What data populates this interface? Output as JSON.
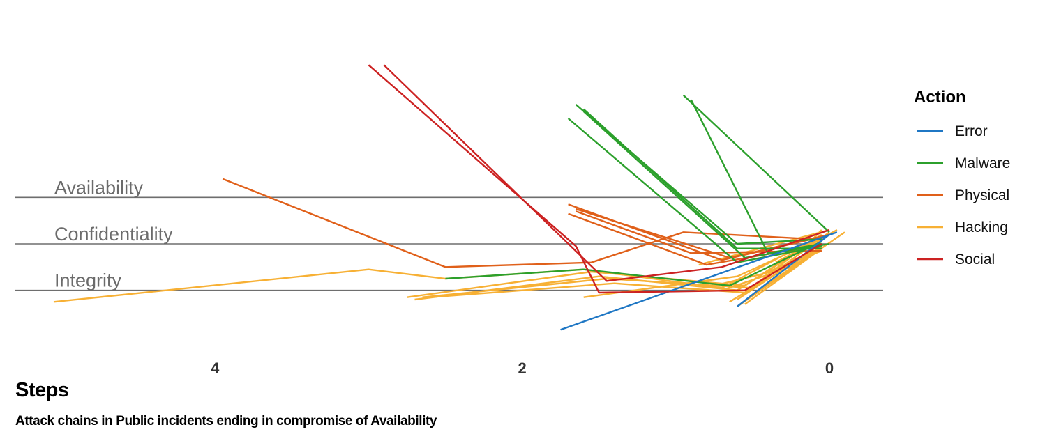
{
  "chart_data": {
    "type": "line",
    "subtitle": "Attack chains in Public incidents ending in compromise of Availability",
    "xlabel": "Steps",
    "xlim": [
      5.3,
      -0.35
    ],
    "x_ticks": [
      "4",
      "2",
      "0"
    ],
    "y_bands": [
      "Availability",
      "Confidentiality",
      "Integrity"
    ],
    "ylim": [
      -2.1,
      3.9
    ],
    "legend_title": "Action",
    "legend_position": "right",
    "series": [
      {
        "name": "Error",
        "color": "#1f77c4",
        "values": []
      },
      {
        "name": "Malware",
        "color": "#2ca02c",
        "values": []
      },
      {
        "name": "Physical",
        "color": "#e0601a",
        "values": []
      },
      {
        "name": "Hacking",
        "color": "#f7b034",
        "values": []
      },
      {
        "name": "Social",
        "color": "#cc2222",
        "values": []
      }
    ],
    "chains": [
      {
        "action": "Error",
        "points": [
          [
            1.75,
            -1.85
          ],
          [
            -0.05,
            0.25
          ]
        ]
      },
      {
        "action": "Error",
        "points": [
          [
            0.6,
            -1.35
          ],
          [
            0.0,
            0.2
          ]
        ]
      },
      {
        "action": "Malware",
        "points": [
          [
            1.65,
            3.0
          ],
          [
            0.6,
            0.0
          ],
          [
            0.05,
            0.1
          ]
        ]
      },
      {
        "action": "Malware",
        "points": [
          [
            1.6,
            2.9
          ],
          [
            0.6,
            -0.1
          ],
          [
            0.05,
            -0.1
          ]
        ]
      },
      {
        "action": "Malware",
        "points": [
          [
            1.6,
            2.85
          ],
          [
            0.55,
            -0.3
          ],
          [
            0.0,
            0.0
          ]
        ]
      },
      {
        "action": "Malware",
        "points": [
          [
            1.7,
            2.7
          ],
          [
            0.6,
            -0.4
          ],
          [
            0.05,
            -0.05
          ]
        ]
      },
      {
        "action": "Malware",
        "points": [
          [
            0.95,
            3.2
          ],
          [
            0.0,
            0.25
          ]
        ]
      },
      {
        "action": "Malware",
        "points": [
          [
            0.9,
            3.1
          ],
          [
            0.4,
            -0.2
          ],
          [
            0.05,
            0.0
          ]
        ]
      },
      {
        "action": "Malware",
        "points": [
          [
            2.5,
            -0.75
          ],
          [
            1.6,
            -0.55
          ],
          [
            0.65,
            -0.9
          ],
          [
            0.05,
            0.05
          ]
        ]
      },
      {
        "action": "Physical",
        "points": [
          [
            3.95,
            1.4
          ],
          [
            2.5,
            -0.5
          ],
          [
            1.55,
            -0.4
          ],
          [
            0.95,
            0.25
          ],
          [
            0.1,
            0.1
          ]
        ]
      },
      {
        "action": "Physical",
        "points": [
          [
            1.7,
            0.85
          ],
          [
            0.7,
            -0.35
          ],
          [
            0.05,
            0.15
          ]
        ]
      },
      {
        "action": "Physical",
        "points": [
          [
            1.65,
            0.75
          ],
          [
            0.65,
            -0.3
          ],
          [
            0.0,
            0.2
          ]
        ]
      },
      {
        "action": "Physical",
        "points": [
          [
            1.65,
            0.7
          ],
          [
            0.9,
            -0.2
          ],
          [
            0.05,
            -0.15
          ]
        ]
      },
      {
        "action": "Physical",
        "points": [
          [
            1.7,
            0.65
          ],
          [
            0.8,
            -0.45
          ],
          [
            0.1,
            -0.05
          ]
        ]
      },
      {
        "action": "Hacking",
        "points": [
          [
            5.05,
            -1.25
          ],
          [
            3.0,
            -0.55
          ],
          [
            2.5,
            -0.75
          ],
          [
            1.6,
            -0.55
          ],
          [
            0.7,
            -0.95
          ],
          [
            0.1,
            0.1
          ]
        ]
      },
      {
        "action": "Hacking",
        "points": [
          [
            2.75,
            -1.15
          ],
          [
            1.55,
            -0.6
          ],
          [
            0.55,
            -0.9
          ],
          [
            0.05,
            0.2
          ]
        ]
      },
      {
        "action": "Hacking",
        "points": [
          [
            2.7,
            -1.2
          ],
          [
            1.5,
            -0.7
          ],
          [
            0.6,
            -1.0
          ],
          [
            0.05,
            0.15
          ]
        ]
      },
      {
        "action": "Hacking",
        "points": [
          [
            2.65,
            -1.15
          ],
          [
            1.45,
            -0.75
          ],
          [
            0.5,
            -0.95
          ],
          [
            0.0,
            0.25
          ]
        ]
      },
      {
        "action": "Hacking",
        "points": [
          [
            2.6,
            -1.15
          ],
          [
            1.4,
            -0.85
          ],
          [
            0.55,
            -1.05
          ],
          [
            0.1,
            0.1
          ]
        ]
      },
      {
        "action": "Hacking",
        "points": [
          [
            1.6,
            -1.15
          ],
          [
            0.6,
            -0.7
          ],
          [
            0.1,
            0.05
          ]
        ]
      },
      {
        "action": "Hacking",
        "points": [
          [
            0.75,
            -0.9
          ],
          [
            0.25,
            -0.5
          ],
          [
            0.0,
            0.25
          ]
        ]
      },
      {
        "action": "Hacking",
        "points": [
          [
            0.7,
            -1.0
          ],
          [
            0.3,
            -0.55
          ],
          [
            0.05,
            0.3
          ]
        ]
      },
      {
        "action": "Hacking",
        "points": [
          [
            0.65,
            -1.25
          ],
          [
            0.1,
            -0.15
          ]
        ]
      },
      {
        "action": "Hacking",
        "points": [
          [
            0.6,
            -1.2
          ],
          [
            0.05,
            0.0
          ]
        ]
      },
      {
        "action": "Hacking",
        "points": [
          [
            0.55,
            -1.3
          ],
          [
            0.05,
            -0.1
          ]
        ]
      },
      {
        "action": "Hacking",
        "points": [
          [
            0.6,
            -1.35
          ],
          [
            -0.1,
            0.25
          ]
        ]
      },
      {
        "action": "Hacking",
        "points": [
          [
            0.5,
            -1.1
          ],
          [
            0.05,
            -0.05
          ]
        ]
      },
      {
        "action": "Hacking",
        "points": [
          [
            0.45,
            -0.8
          ],
          [
            0.1,
            0.1
          ]
        ]
      },
      {
        "action": "Hacking",
        "points": [
          [
            0.85,
            -0.45
          ],
          [
            0.0,
            0.3
          ]
        ]
      },
      {
        "action": "Hacking",
        "points": [
          [
            0.4,
            -0.6
          ],
          [
            0.05,
            -0.15
          ]
        ]
      },
      {
        "action": "Hacking",
        "points": [
          [
            0.35,
            -0.4
          ],
          [
            -0.05,
            0.3
          ]
        ]
      },
      {
        "action": "Social",
        "points": [
          [
            3.0,
            3.85
          ],
          [
            1.65,
            -0.05
          ],
          [
            1.5,
            -1.05
          ],
          [
            0.55,
            -1.0
          ],
          [
            0.05,
            0.0
          ]
        ]
      },
      {
        "action": "Social",
        "points": [
          [
            2.9,
            3.85
          ],
          [
            1.45,
            -0.8
          ],
          [
            0.7,
            -0.5
          ],
          [
            0.0,
            0.3
          ]
        ]
      }
    ]
  }
}
